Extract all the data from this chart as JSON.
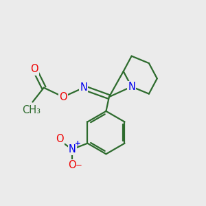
{
  "bg_color": "#ebebeb",
  "bond_color": "#2d6b2d",
  "bond_width": 1.6,
  "atom_colors": {
    "N": "#0000ee",
    "O": "#ee0000",
    "C": "#2d6b2d"
  },
  "font_size_atom": 10.5,
  "font_size_charge": 7.5
}
